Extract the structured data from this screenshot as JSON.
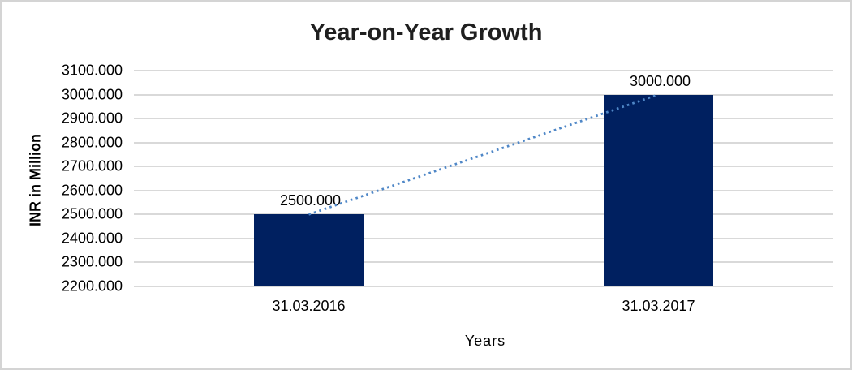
{
  "window": {
    "background": "#FFFFFF",
    "border_color": "#D4D4D4"
  },
  "chart_data": {
    "type": "bar",
    "title": "Year-on-Year Growth",
    "categories": [
      "31.03.2016",
      "31.03.2017"
    ],
    "values": [
      2500,
      3000
    ],
    "data_labels": [
      "2500.000",
      "3000.000"
    ],
    "xlabel": "Years",
    "ylabel": "INR in Million",
    "ylim": [
      2200,
      3100
    ],
    "ytick_step": 100,
    "ytick_labels": [
      "3100.000",
      "3000.000",
      "2900.000",
      "2800.000",
      "2700.000",
      "2600.000",
      "2500.000",
      "2400.000",
      "2300.000",
      "2200.000"
    ],
    "grid": true,
    "legend": "none",
    "bar_color": "#002060",
    "gridline_color": "#D9D9D9",
    "title_color": "#1F1F1F",
    "text_color": "#000000",
    "trendline": {
      "style": "dotted",
      "color": "#4F87C7",
      "connects_values": [
        2500,
        3000
      ]
    }
  }
}
